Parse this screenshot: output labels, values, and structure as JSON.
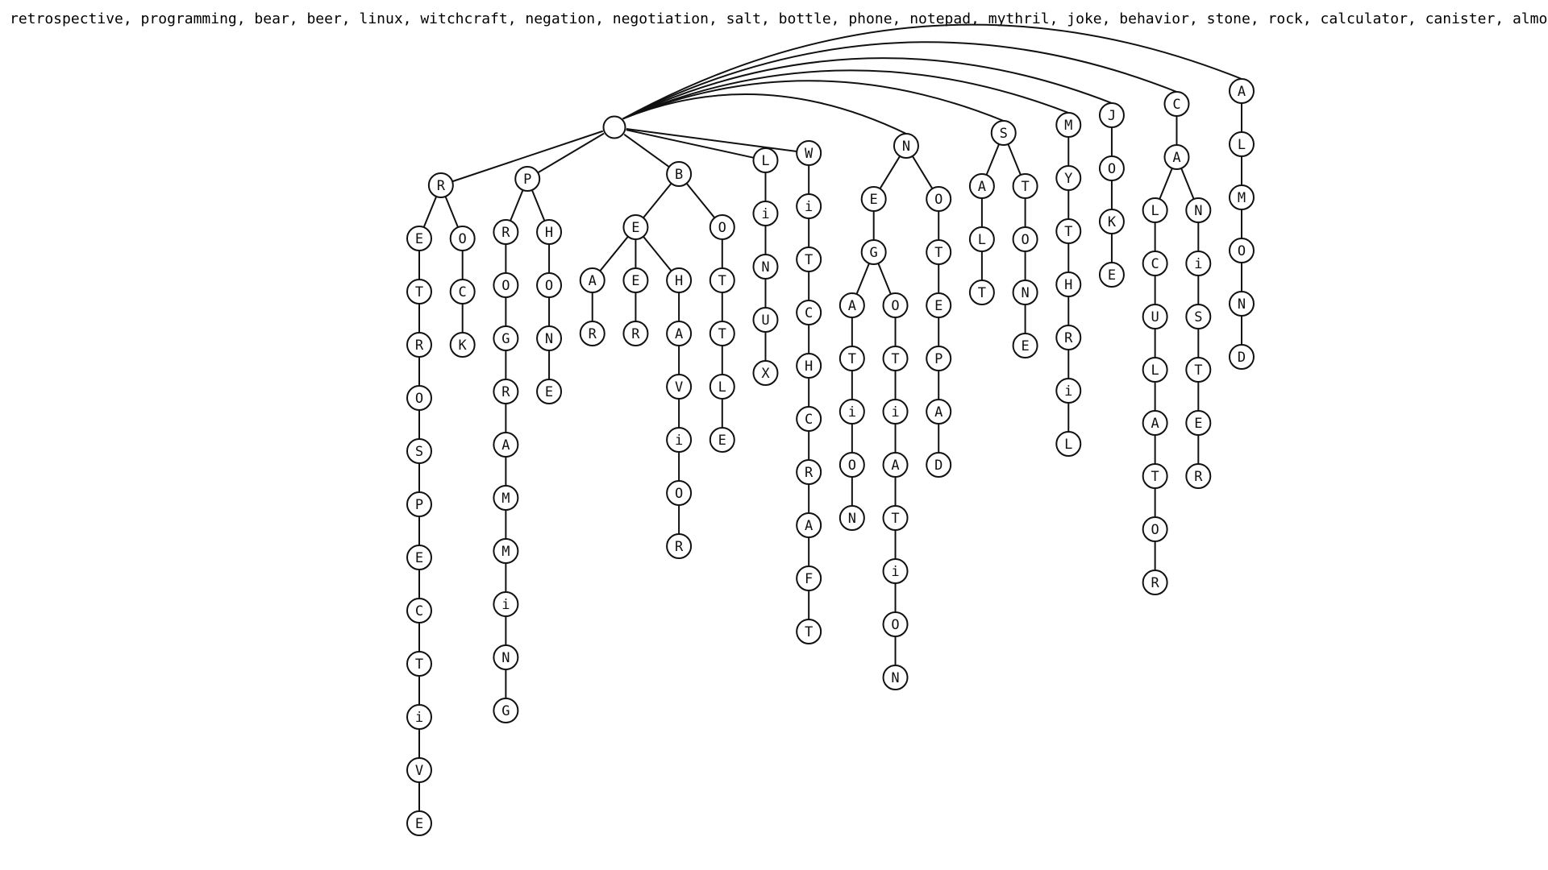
{
  "header": {
    "text": "retrospective, programming, bear, beer, linux, witchcraft, negation, negotiation, salt, bottle, phone, notepad, mythril, joke, behavior, stone, rock, calculator, canister, almond"
  },
  "tree": {
    "children": [
      {
        "label": "R",
        "children": [
          {
            "label": "E",
            "children": [
              {
                "label": "T",
                "children": [
                  {
                    "label": "R",
                    "children": [
                      {
                        "label": "O",
                        "children": [
                          {
                            "label": "S",
                            "children": [
                              {
                                "label": "P",
                                "children": [
                                  {
                                    "label": "E",
                                    "children": [
                                      {
                                        "label": "C",
                                        "children": [
                                          {
                                            "label": "T",
                                            "children": [
                                              {
                                                "label": "i",
                                                "children": [
                                                  {
                                                    "label": "V",
                                                    "children": [
                                                      {
                                                        "label": "E"
                                                      }
                                                    ]
                                                  }
                                                ]
                                              }
                                            ]
                                          }
                                        ]
                                      }
                                    ]
                                  }
                                ]
                              }
                            ]
                          }
                        ]
                      }
                    ]
                  }
                ]
              }
            ]
          },
          {
            "label": "O",
            "children": [
              {
                "label": "C",
                "children": [
                  {
                    "label": "K"
                  }
                ]
              }
            ]
          }
        ]
      },
      {
        "label": "P",
        "children": [
          {
            "label": "R",
            "children": [
              {
                "label": "O",
                "children": [
                  {
                    "label": "G",
                    "children": [
                      {
                        "label": "R",
                        "children": [
                          {
                            "label": "A",
                            "children": [
                              {
                                "label": "M",
                                "children": [
                                  {
                                    "label": "M",
                                    "children": [
                                      {
                                        "label": "i",
                                        "children": [
                                          {
                                            "label": "N",
                                            "children": [
                                              {
                                                "label": "G"
                                              }
                                            ]
                                          }
                                        ]
                                      }
                                    ]
                                  }
                                ]
                              }
                            ]
                          }
                        ]
                      }
                    ]
                  }
                ]
              }
            ]
          },
          {
            "label": "H",
            "children": [
              {
                "label": "O",
                "children": [
                  {
                    "label": "N",
                    "children": [
                      {
                        "label": "E"
                      }
                    ]
                  }
                ]
              }
            ]
          }
        ]
      },
      {
        "label": "B",
        "children": [
          {
            "label": "E",
            "children": [
              {
                "label": "A",
                "children": [
                  {
                    "label": "R"
                  }
                ]
              },
              {
                "label": "E",
                "children": [
                  {
                    "label": "R"
                  }
                ]
              },
              {
                "label": "H",
                "children": [
                  {
                    "label": "A",
                    "children": [
                      {
                        "label": "V",
                        "children": [
                          {
                            "label": "i",
                            "children": [
                              {
                                "label": "O",
                                "children": [
                                  {
                                    "label": "R"
                                  }
                                ]
                              }
                            ]
                          }
                        ]
                      }
                    ]
                  }
                ]
              }
            ]
          },
          {
            "label": "O",
            "children": [
              {
                "label": "T",
                "children": [
                  {
                    "label": "T",
                    "children": [
                      {
                        "label": "L",
                        "children": [
                          {
                            "label": "E"
                          }
                        ]
                      }
                    ]
                  }
                ]
              }
            ]
          }
        ]
      },
      {
        "label": "L",
        "children": [
          {
            "label": "i",
            "children": [
              {
                "label": "N",
                "children": [
                  {
                    "label": "U",
                    "children": [
                      {
                        "label": "X"
                      }
                    ]
                  }
                ]
              }
            ]
          }
        ]
      },
      {
        "label": "W",
        "children": [
          {
            "label": "i",
            "children": [
              {
                "label": "T",
                "children": [
                  {
                    "label": "C",
                    "children": [
                      {
                        "label": "H",
                        "children": [
                          {
                            "label": "C",
                            "children": [
                              {
                                "label": "R",
                                "children": [
                                  {
                                    "label": "A",
                                    "children": [
                                      {
                                        "label": "F",
                                        "children": [
                                          {
                                            "label": "T"
                                          }
                                        ]
                                      }
                                    ]
                                  }
                                ]
                              }
                            ]
                          }
                        ]
                      }
                    ]
                  }
                ]
              }
            ]
          }
        ]
      },
      {
        "label": "N",
        "children": [
          {
            "label": "E",
            "children": [
              {
                "label": "G",
                "children": [
                  {
                    "label": "A",
                    "children": [
                      {
                        "label": "T",
                        "children": [
                          {
                            "label": "i",
                            "children": [
                              {
                                "label": "O",
                                "children": [
                                  {
                                    "label": "N"
                                  }
                                ]
                              }
                            ]
                          }
                        ]
                      }
                    ]
                  },
                  {
                    "label": "O",
                    "children": [
                      {
                        "label": "T",
                        "children": [
                          {
                            "label": "i",
                            "children": [
                              {
                                "label": "A",
                                "children": [
                                  {
                                    "label": "T",
                                    "children": [
                                      {
                                        "label": "i",
                                        "children": [
                                          {
                                            "label": "O",
                                            "children": [
                                              {
                                                "label": "N"
                                              }
                                            ]
                                          }
                                        ]
                                      }
                                    ]
                                  }
                                ]
                              }
                            ]
                          }
                        ]
                      }
                    ]
                  }
                ]
              }
            ]
          },
          {
            "label": "O",
            "children": [
              {
                "label": "T",
                "children": [
                  {
                    "label": "E",
                    "children": [
                      {
                        "label": "P",
                        "children": [
                          {
                            "label": "A",
                            "children": [
                              {
                                "label": "D"
                              }
                            ]
                          }
                        ]
                      }
                    ]
                  }
                ]
              }
            ]
          }
        ]
      },
      {
        "label": "S",
        "children": [
          {
            "label": "A",
            "children": [
              {
                "label": "L",
                "children": [
                  {
                    "label": "T"
                  }
                ]
              }
            ]
          },
          {
            "label": "T",
            "children": [
              {
                "label": "O",
                "children": [
                  {
                    "label": "N",
                    "children": [
                      {
                        "label": "E"
                      }
                    ]
                  }
                ]
              }
            ]
          }
        ]
      },
      {
        "label": "M",
        "children": [
          {
            "label": "Y",
            "children": [
              {
                "label": "T",
                "children": [
                  {
                    "label": "H",
                    "children": [
                      {
                        "label": "R",
                        "children": [
                          {
                            "label": "i",
                            "children": [
                              {
                                "label": "L"
                              }
                            ]
                          }
                        ]
                      }
                    ]
                  }
                ]
              }
            ]
          }
        ]
      },
      {
        "label": "J",
        "children": [
          {
            "label": "O",
            "children": [
              {
                "label": "K",
                "children": [
                  {
                    "label": "E"
                  }
                ]
              }
            ]
          }
        ]
      },
      {
        "label": "C",
        "children": [
          {
            "label": "A",
            "children": [
              {
                "label": "L",
                "children": [
                  {
                    "label": "C",
                    "children": [
                      {
                        "label": "U",
                        "children": [
                          {
                            "label": "L",
                            "children": [
                              {
                                "label": "A",
                                "children": [
                                  {
                                    "label": "T",
                                    "children": [
                                      {
                                        "label": "O",
                                        "children": [
                                          {
                                            "label": "R"
                                          }
                                        ]
                                      }
                                    ]
                                  }
                                ]
                              }
                            ]
                          }
                        ]
                      }
                    ]
                  }
                ]
              },
              {
                "label": "N",
                "children": [
                  {
                    "label": "i",
                    "children": [
                      {
                        "label": "S",
                        "children": [
                          {
                            "label": "T",
                            "children": [
                              {
                                "label": "E",
                                "children": [
                                  {
                                    "label": "R"
                                  }
                                ]
                              }
                            ]
                          }
                        ]
                      }
                    ]
                  }
                ]
              }
            ]
          }
        ]
      },
      {
        "label": "A",
        "children": [
          {
            "label": "L",
            "children": [
              {
                "label": "M",
                "children": [
                  {
                    "label": "O",
                    "children": [
                      {
                        "label": "N",
                        "children": [
                          {
                            "label": "D"
                          }
                        ]
                      }
                    ]
                  }
                ]
              }
            ]
          }
        ]
      }
    ]
  }
}
